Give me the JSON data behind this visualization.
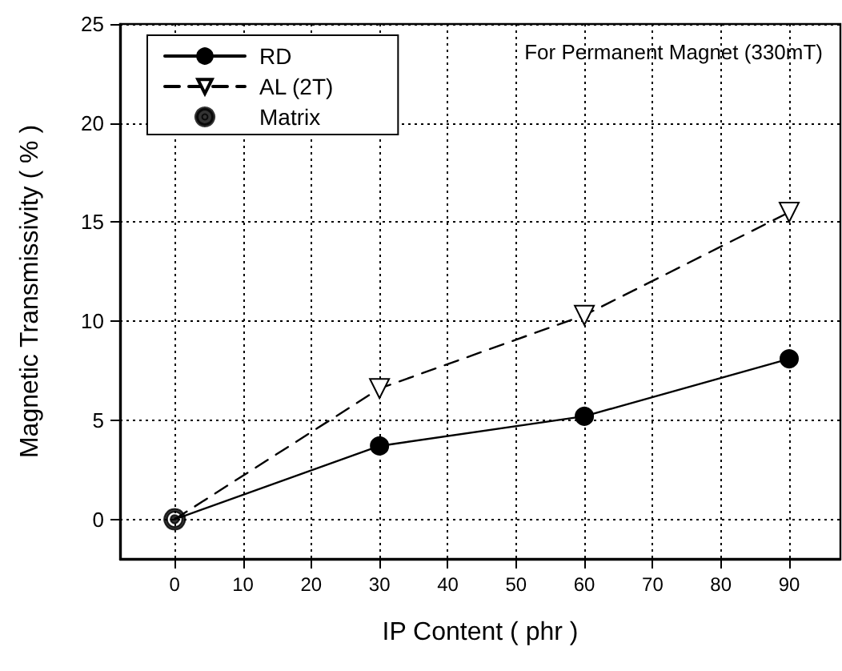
{
  "chart_data": {
    "type": "line",
    "xlabel": "IP Content ( phr )",
    "ylabel": "Magnetic Transmissivity ( % )",
    "annotations": [
      "For Permanent Magnet (330mT)"
    ],
    "series": [
      {
        "name": "RD",
        "color": "#000000",
        "x": [
          0,
          30,
          60,
          90
        ],
        "values": [
          0,
          3.7,
          5.2,
          8.1
        ],
        "marker": "circle",
        "line_style": "solid"
      },
      {
        "name": "AL (2T)",
        "color": "#000000",
        "x": [
          0,
          30,
          60,
          90
        ],
        "values": [
          0,
          6.6,
          10.3,
          15.5
        ],
        "marker": "triangle",
        "line_style": "dashed"
      },
      {
        "name": "Matrix",
        "color": "#000000",
        "x": [
          0
        ],
        "values": [
          0
        ],
        "type": "scatter",
        "marker": "circle"
      }
    ],
    "xlim": [
      -8,
      97.5
    ],
    "xticks": [
      0,
      10,
      20,
      30,
      40,
      50,
      60,
      70,
      80,
      90
    ],
    "ylim": [
      -2,
      25
    ],
    "yticks": [
      0,
      5,
      10,
      15,
      20,
      25
    ],
    "grid": true,
    "legend": "top left"
  }
}
